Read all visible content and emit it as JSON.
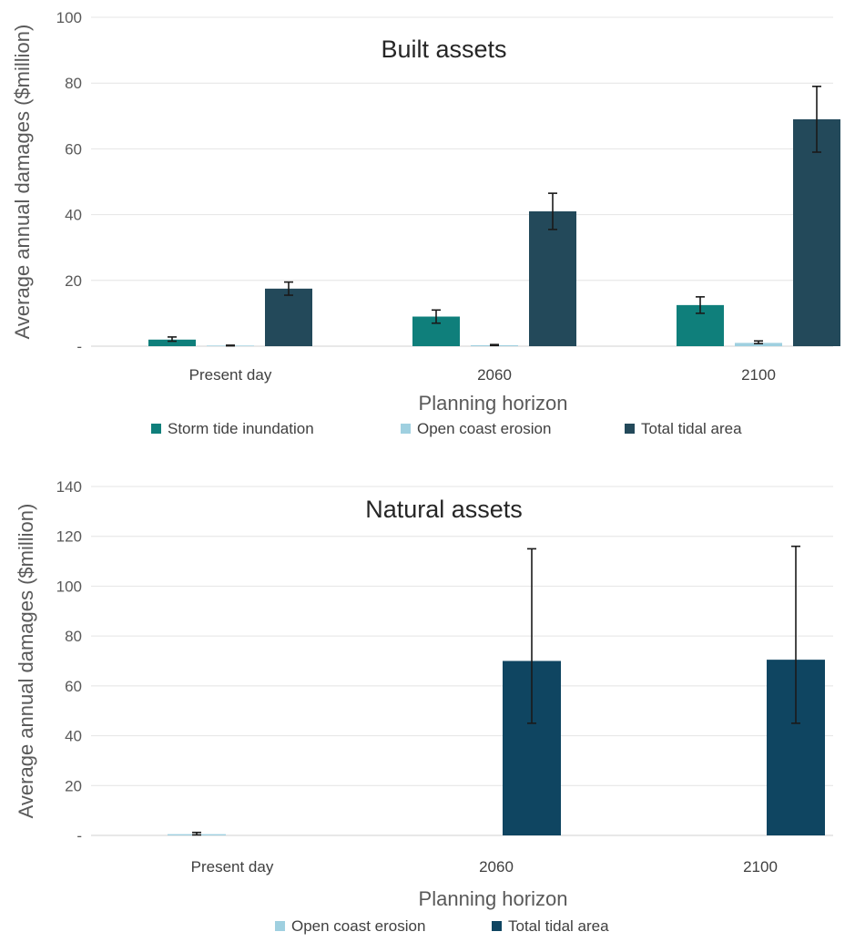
{
  "chart_data": [
    {
      "type": "bar",
      "title": "Built assets",
      "xlabel": "Planning horizon",
      "ylabel": "Average annual damages ($million)",
      "ylim": [
        0,
        100
      ],
      "yticks": [
        "-",
        "20",
        "40",
        "60",
        "80",
        "100"
      ],
      "categories": [
        "Present day",
        "2060",
        "2100"
      ],
      "grid": true,
      "legend": "bottom",
      "series": [
        {
          "name": "Storm tide inundation",
          "color": "#0f7f7b",
          "values": [
            2,
            9,
            12.5
          ],
          "err_low": [
            1.5,
            7,
            10
          ],
          "err_high": [
            2.8,
            11,
            15
          ]
        },
        {
          "name": "Open coast erosion",
          "color": "#9fd0e0",
          "values": [
            0.2,
            0.3,
            1
          ],
          "err_low": [
            0.1,
            0.2,
            0.8
          ],
          "err_high": [
            0.3,
            0.5,
            1.6
          ]
        },
        {
          "name": "Total tidal area",
          "color": "#23495a",
          "values": [
            17.5,
            41,
            69
          ],
          "err_low": [
            15.5,
            35.5,
            59
          ],
          "err_high": [
            19.5,
            46.5,
            79
          ]
        }
      ]
    },
    {
      "type": "bar",
      "title": "Natural assets",
      "xlabel": "Planning horizon",
      "ylabel": "Average annual damages ($million)",
      "ylim": [
        0,
        140
      ],
      "yticks": [
        "-",
        "20",
        "40",
        "60",
        "80",
        "100",
        "120",
        "140"
      ],
      "categories": [
        "Present day",
        "2060",
        "2100"
      ],
      "grid": true,
      "legend": "bottom",
      "series": [
        {
          "name": "Open coast erosion",
          "color": "#9fd0e0",
          "values": [
            0.5,
            0,
            0
          ],
          "err_low": [
            0.2,
            null,
            null
          ],
          "err_high": [
            1.2,
            null,
            null
          ]
        },
        {
          "name": "Total tidal area",
          "color": "#0f4561",
          "values": [
            0,
            70,
            70.5
          ],
          "err_low": [
            null,
            45,
            45
          ],
          "err_high": [
            null,
            115,
            116
          ]
        }
      ]
    }
  ]
}
